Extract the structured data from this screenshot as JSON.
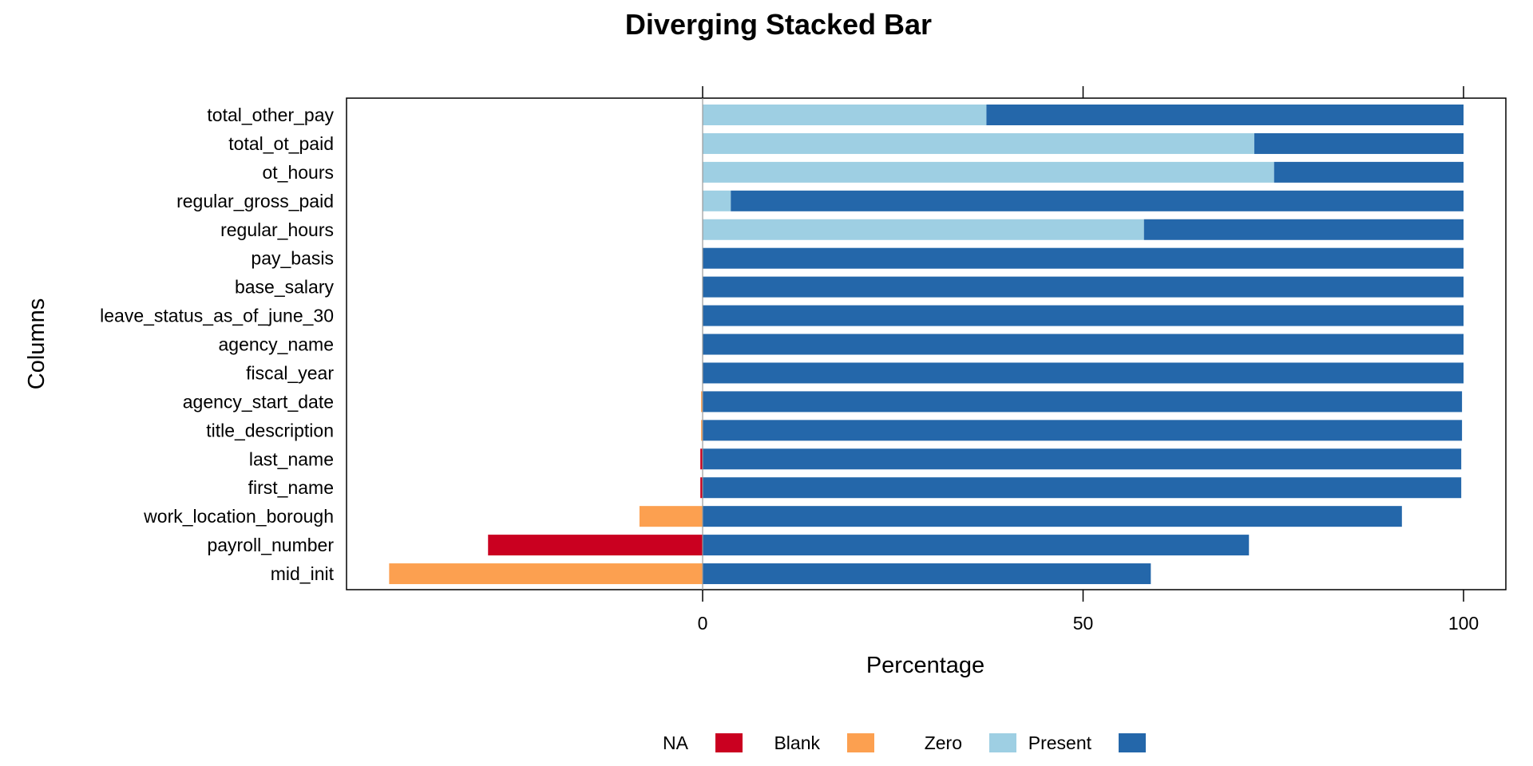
{
  "chart_data": {
    "type": "bar",
    "title": "Diverging Stacked Bar",
    "xlabel": "Percentage",
    "ylabel": "Columns",
    "xlim": [
      -47,
      106
    ],
    "xticks": [
      0,
      50,
      100
    ],
    "grid": false,
    "legend_position": "bottom",
    "categories": [
      "total_other_pay",
      "total_ot_paid",
      "ot_hours",
      "regular_gross_paid",
      "regular_hours",
      "pay_basis",
      "base_salary",
      "leave_status_as_of_june_30",
      "agency_name",
      "fiscal_year",
      "agency_start_date",
      "title_description",
      "last_name",
      "first_name",
      "work_location_borough",
      "payroll_number",
      "mid_init"
    ],
    "series": [
      {
        "name": "NA",
        "color": "#ca0020",
        "side": "negative",
        "values": [
          0,
          0,
          0,
          0,
          0,
          0,
          0,
          0,
          0,
          0,
          0,
          0,
          0.3,
          0.3,
          0,
          28.2,
          0
        ]
      },
      {
        "name": "Blank",
        "color": "#fca050",
        "side": "negative",
        "values": [
          0,
          0,
          0,
          0,
          0,
          0,
          0,
          0,
          0,
          0,
          0.2,
          0.2,
          0,
          0,
          8.3,
          0,
          41.2
        ]
      },
      {
        "name": "Zero",
        "color": "#9ecfe3",
        "side": "positive",
        "values": [
          37.3,
          72.5,
          75.1,
          3.7,
          58.0,
          0,
          0,
          0,
          0,
          0,
          0,
          0,
          0,
          0,
          0,
          0,
          0
        ]
      },
      {
        "name": "Present",
        "color": "#2467aa",
        "side": "positive",
        "values": [
          62.7,
          27.5,
          24.9,
          96.3,
          42.0,
          100,
          100,
          100,
          100,
          100,
          99.8,
          99.8,
          99.7,
          99.7,
          91.9,
          71.8,
          58.9
        ]
      }
    ]
  }
}
